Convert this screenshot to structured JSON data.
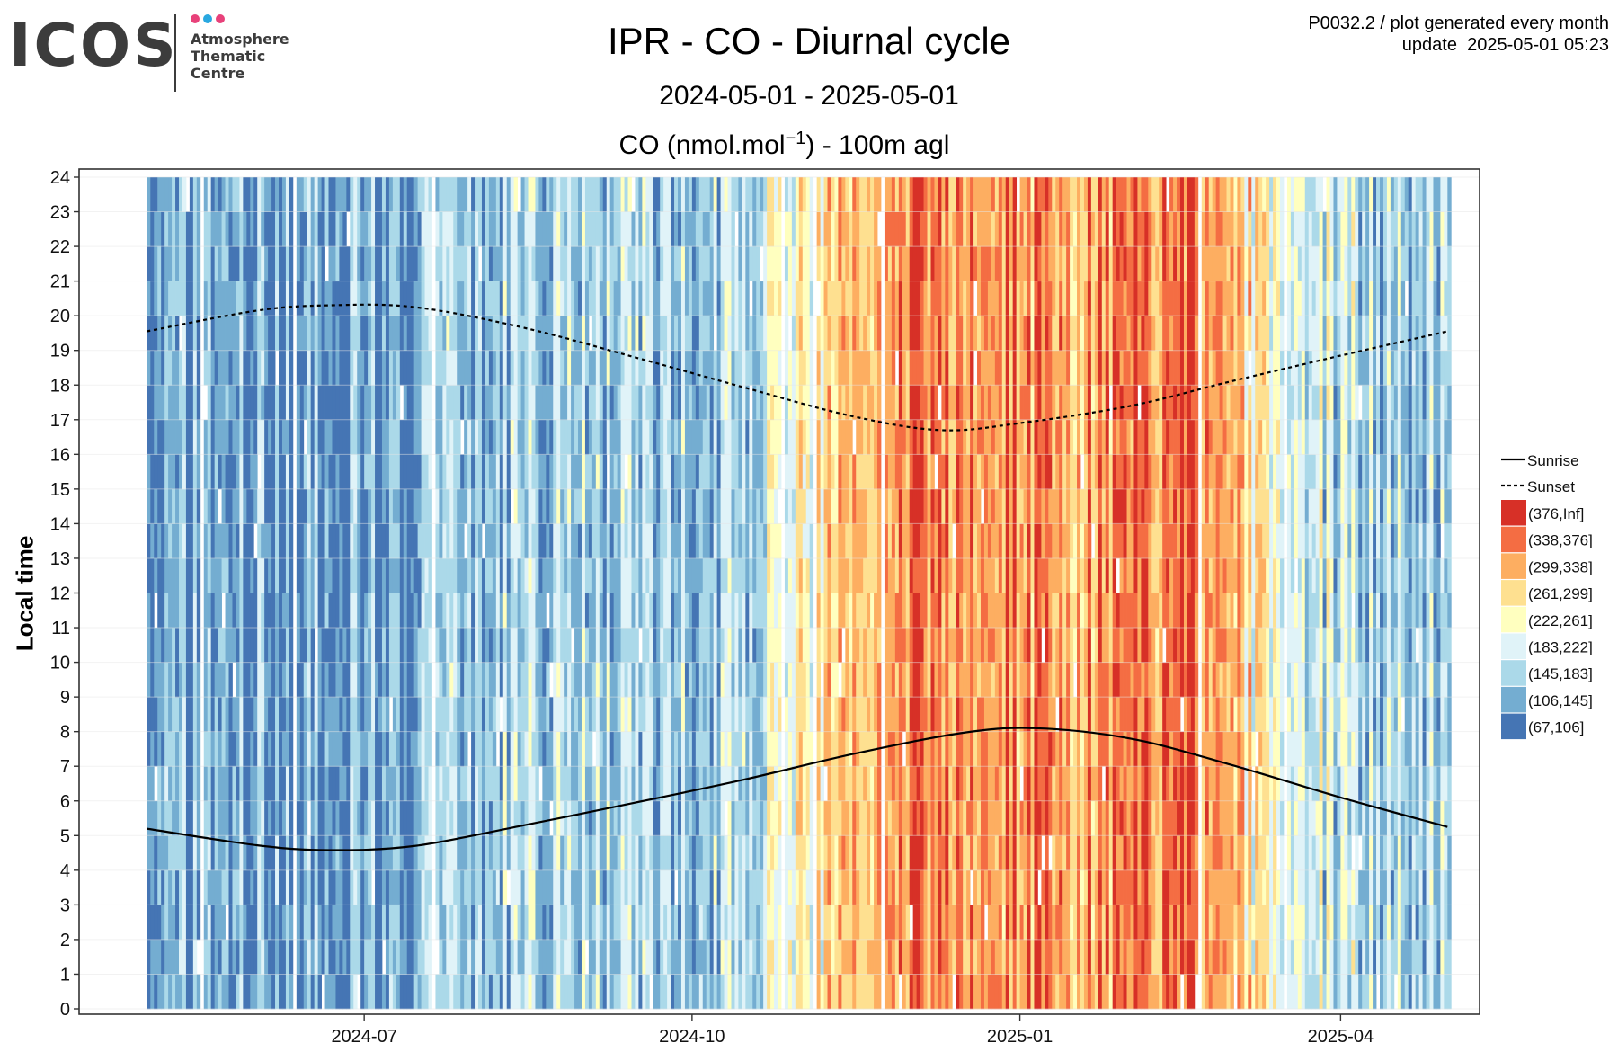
{
  "header": {
    "logo_main": "ICOS",
    "logo_sub": [
      "Atmosphere",
      "Thematic",
      "Centre"
    ],
    "logo_dot_colors": [
      "#e8417a",
      "#29a8e0",
      "#e8417a"
    ],
    "title": "IPR - CO - Diurnal cycle",
    "period": "2024-05-01 - 2025-05-01",
    "subtitle_main": "CO (nmol.mol",
    "subtitle_sup": "−1",
    "subtitle_tail": ") - 100m agl",
    "meta_line1": "P0032.2 / plot generated every month",
    "meta_line2": "update  2025-05-01 05:23"
  },
  "chart_data": {
    "type": "heatmap",
    "ylabel": "Local time",
    "xlabel": "",
    "x_range": [
      "2024-05-01",
      "2025-05-01"
    ],
    "x_ticks": [
      {
        "date": "2024-07-01",
        "label": "2024-07"
      },
      {
        "date": "2024-10-01",
        "label": "2024-10"
      },
      {
        "date": "2025-01-01",
        "label": "2025-01"
      },
      {
        "date": "2025-04-01",
        "label": "2025-04"
      }
    ],
    "ylim": [
      0,
      24
    ],
    "y_ticks": [
      0,
      1,
      2,
      3,
      4,
      5,
      6,
      7,
      8,
      9,
      10,
      11,
      12,
      13,
      14,
      15,
      16,
      17,
      18,
      19,
      20,
      21,
      22,
      23,
      24
    ],
    "grid": true,
    "legend_position": "right",
    "legend": {
      "lines": [
        {
          "label": "Sunrise",
          "style": "solid"
        },
        {
          "label": "Sunset",
          "style": "dashed"
        }
      ],
      "bins": [
        {
          "label": "(376,Inf]",
          "color": "#d73027"
        },
        {
          "label": "(338,376]",
          "color": "#f46d43"
        },
        {
          "label": "(299,338]",
          "color": "#fdae61"
        },
        {
          "label": "(261,299]",
          "color": "#fee090"
        },
        {
          "label": "(222,261]",
          "color": "#ffffbf"
        },
        {
          "label": "(183,222]",
          "color": "#e0f3f8"
        },
        {
          "label": "(145,183]",
          "color": "#abd9e9"
        },
        {
          "label": "(106,145]",
          "color": "#74add1"
        },
        {
          "label": "(67,106]",
          "color": "#4575b4"
        }
      ]
    },
    "monthly_mean_bin_index": [
      {
        "month": "2024-05",
        "bin": 7
      },
      {
        "month": "2024-06",
        "bin": 7
      },
      {
        "month": "2024-07",
        "bin": 7
      },
      {
        "month": "2024-08",
        "bin": 6
      },
      {
        "month": "2024-09",
        "bin": 6
      },
      {
        "month": "2024-10",
        "bin": 6
      },
      {
        "month": "2024-11",
        "bin": 2
      },
      {
        "month": "2024-12",
        "bin": 1
      },
      {
        "month": "2025-01",
        "bin": 2
      },
      {
        "month": "2025-02",
        "bin": 1
      },
      {
        "month": "2025-03",
        "bin": 5
      },
      {
        "month": "2025-04",
        "bin": 6
      }
    ],
    "series": [
      {
        "name": "Sunrise",
        "points": [
          {
            "date": "2024-05-01",
            "hour": 5.2
          },
          {
            "date": "2024-06-01",
            "hour": 4.72
          },
          {
            "date": "2024-06-21",
            "hour": 4.58
          },
          {
            "date": "2024-07-15",
            "hour": 4.7
          },
          {
            "date": "2024-08-15",
            "hour": 5.3
          },
          {
            "date": "2024-09-15",
            "hour": 5.95
          },
          {
            "date": "2024-10-15",
            "hour": 6.6
          },
          {
            "date": "2024-11-15",
            "hour": 7.35
          },
          {
            "date": "2024-12-15",
            "hour": 7.95
          },
          {
            "date": "2025-01-05",
            "hour": 8.1
          },
          {
            "date": "2025-02-01",
            "hour": 7.8
          },
          {
            "date": "2025-03-01",
            "hour": 7.05
          },
          {
            "date": "2025-04-01",
            "hour": 6.1
          },
          {
            "date": "2025-05-01",
            "hour": 5.25
          }
        ]
      },
      {
        "name": "Sunset",
        "points": [
          {
            "date": "2024-05-01",
            "hour": 19.55
          },
          {
            "date": "2024-06-01",
            "hour": 20.15
          },
          {
            "date": "2024-06-21",
            "hour": 20.3
          },
          {
            "date": "2024-07-15",
            "hour": 20.25
          },
          {
            "date": "2024-08-15",
            "hour": 19.65
          },
          {
            "date": "2024-09-15",
            "hour": 18.8
          },
          {
            "date": "2024-10-15",
            "hour": 17.95
          },
          {
            "date": "2024-11-15",
            "hour": 17.1
          },
          {
            "date": "2024-12-10",
            "hour": 16.7
          },
          {
            "date": "2025-01-01",
            "hour": 16.9
          },
          {
            "date": "2025-02-01",
            "hour": 17.4
          },
          {
            "date": "2025-03-01",
            "hour": 18.1
          },
          {
            "date": "2025-04-01",
            "hour": 18.85
          },
          {
            "date": "2025-05-01",
            "hour": 19.55
          }
        ]
      }
    ]
  }
}
